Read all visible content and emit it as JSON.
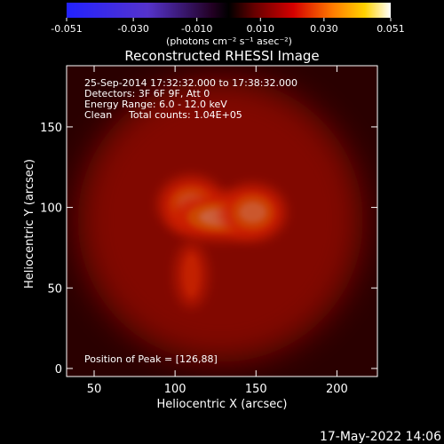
{
  "colorbar": {
    "tick_labels": [
      "-0.051",
      "-0.030",
      "-0.010",
      "0.010",
      "0.030",
      "0.051"
    ],
    "tick_values": [
      -0.051,
      -0.03,
      -0.01,
      0.01,
      0.03,
      0.051
    ],
    "range": [
      -0.051,
      0.051
    ],
    "units_label": "(photons cm⁻² s⁻¹ asec⁻²)",
    "colormap": "blue-to-black-to-red-yellow-white (RHESSI 'hot')"
  },
  "chart_data": {
    "type": "heatmap",
    "title": "Reconstructed RHESSI Image",
    "xlabel": "Heliocentric X (arcsec)",
    "ylabel": "Heliocentric Y (arcsec)",
    "xlim": [
      33,
      225
    ],
    "ylim": [
      -5,
      188
    ],
    "x_ticks": [
      50,
      100,
      150,
      200
    ],
    "y_ticks": [
      0,
      50,
      100,
      150
    ],
    "info_lines": [
      "25-Sep-2014 17:32:32.000 to 17:38:32.000",
      "Detectors: 3F 6F 9F, Att 0",
      "Energy Range: 6.0 - 12.0 keV",
      "Clean",
      "Total counts: 1.04E+05"
    ],
    "peak_label": "Position of Peak = [126,88]",
    "peak_position": [
      126,
      88
    ],
    "emission": [
      {
        "x": 110,
        "y": 102,
        "sx": 7,
        "sy": 6,
        "amp": 0.7
      },
      {
        "x": 128,
        "y": 94,
        "sx": 11,
        "sy": 5,
        "amp": 1.0
      },
      {
        "x": 148,
        "y": 97,
        "sx": 7,
        "sy": 6,
        "amp": 0.75
      },
      {
        "x": 110,
        "y": 58,
        "sx": 5,
        "sy": 10,
        "amp": 0.32
      },
      {
        "x": 128,
        "y": 92,
        "sx": 40,
        "sy": 40,
        "amp": 0.2
      }
    ]
  },
  "timestamp": "17-May-2022 14:06"
}
